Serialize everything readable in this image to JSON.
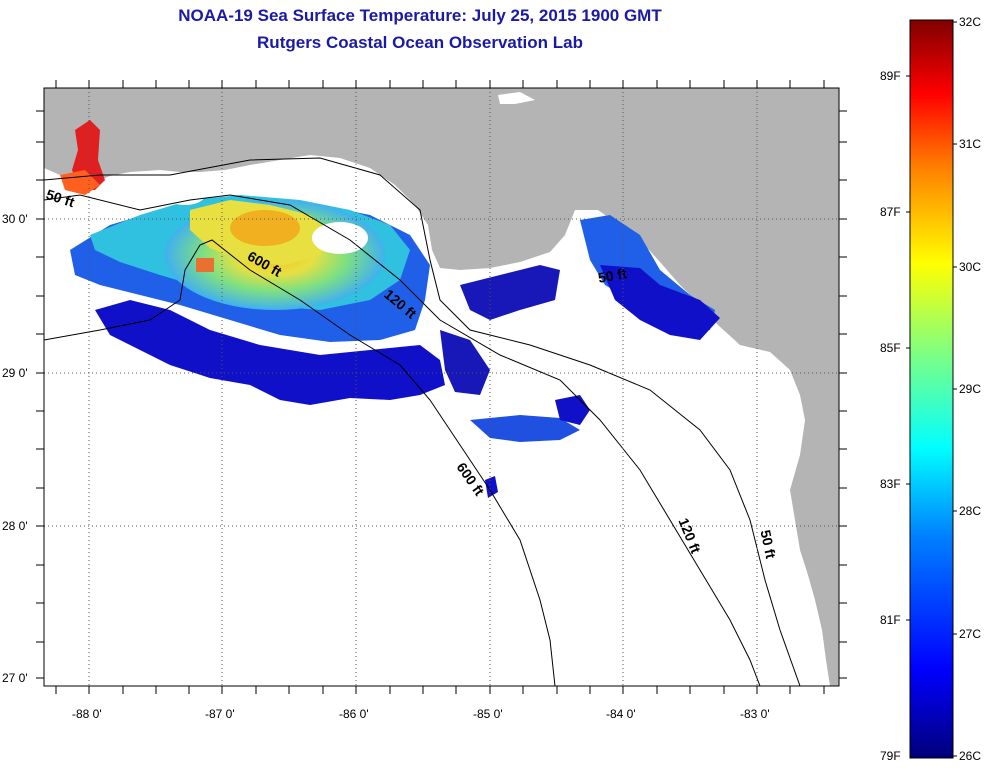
{
  "header": {
    "title": "NOAA-19 Sea Surface Temperature:  July 25, 2015 1900 GMT",
    "subtitle": "Rutgers Coastal Ocean Observation Lab"
  },
  "map": {
    "lat_labels": [
      "30 0'",
      "29 0'",
      "28 0'",
      "27 0'"
    ],
    "lon_labels": [
      "-88 0'",
      "-87 0'",
      "-86 0'",
      "-85 0'",
      "-84 0'",
      "-83 0'"
    ],
    "contour_labels": {
      "c50_west": "50 ft",
      "c600_a": "600 ft",
      "c120_a": "120 ft",
      "c600_b": "600 ft",
      "c50_east": "50 ft",
      "c120_b": "120 ft",
      "c50_south": "50 ft"
    },
    "land_color": "#b4b4b4",
    "water_color": "#ffffff"
  },
  "colorbar": {
    "celsius_labels": [
      "32C",
      "31C",
      "30C",
      "29C",
      "28C",
      "27C",
      "26C"
    ],
    "fahrenheit_labels": [
      "89F",
      "87F",
      "85F",
      "83F",
      "81F",
      "79F"
    ],
    "range_c": [
      26,
      32
    ],
    "colors": [
      "#00008b",
      "#0000ff",
      "#0080ff",
      "#00ffff",
      "#80ff80",
      "#ffff00",
      "#ff8000",
      "#ff0000",
      "#800000"
    ]
  }
}
